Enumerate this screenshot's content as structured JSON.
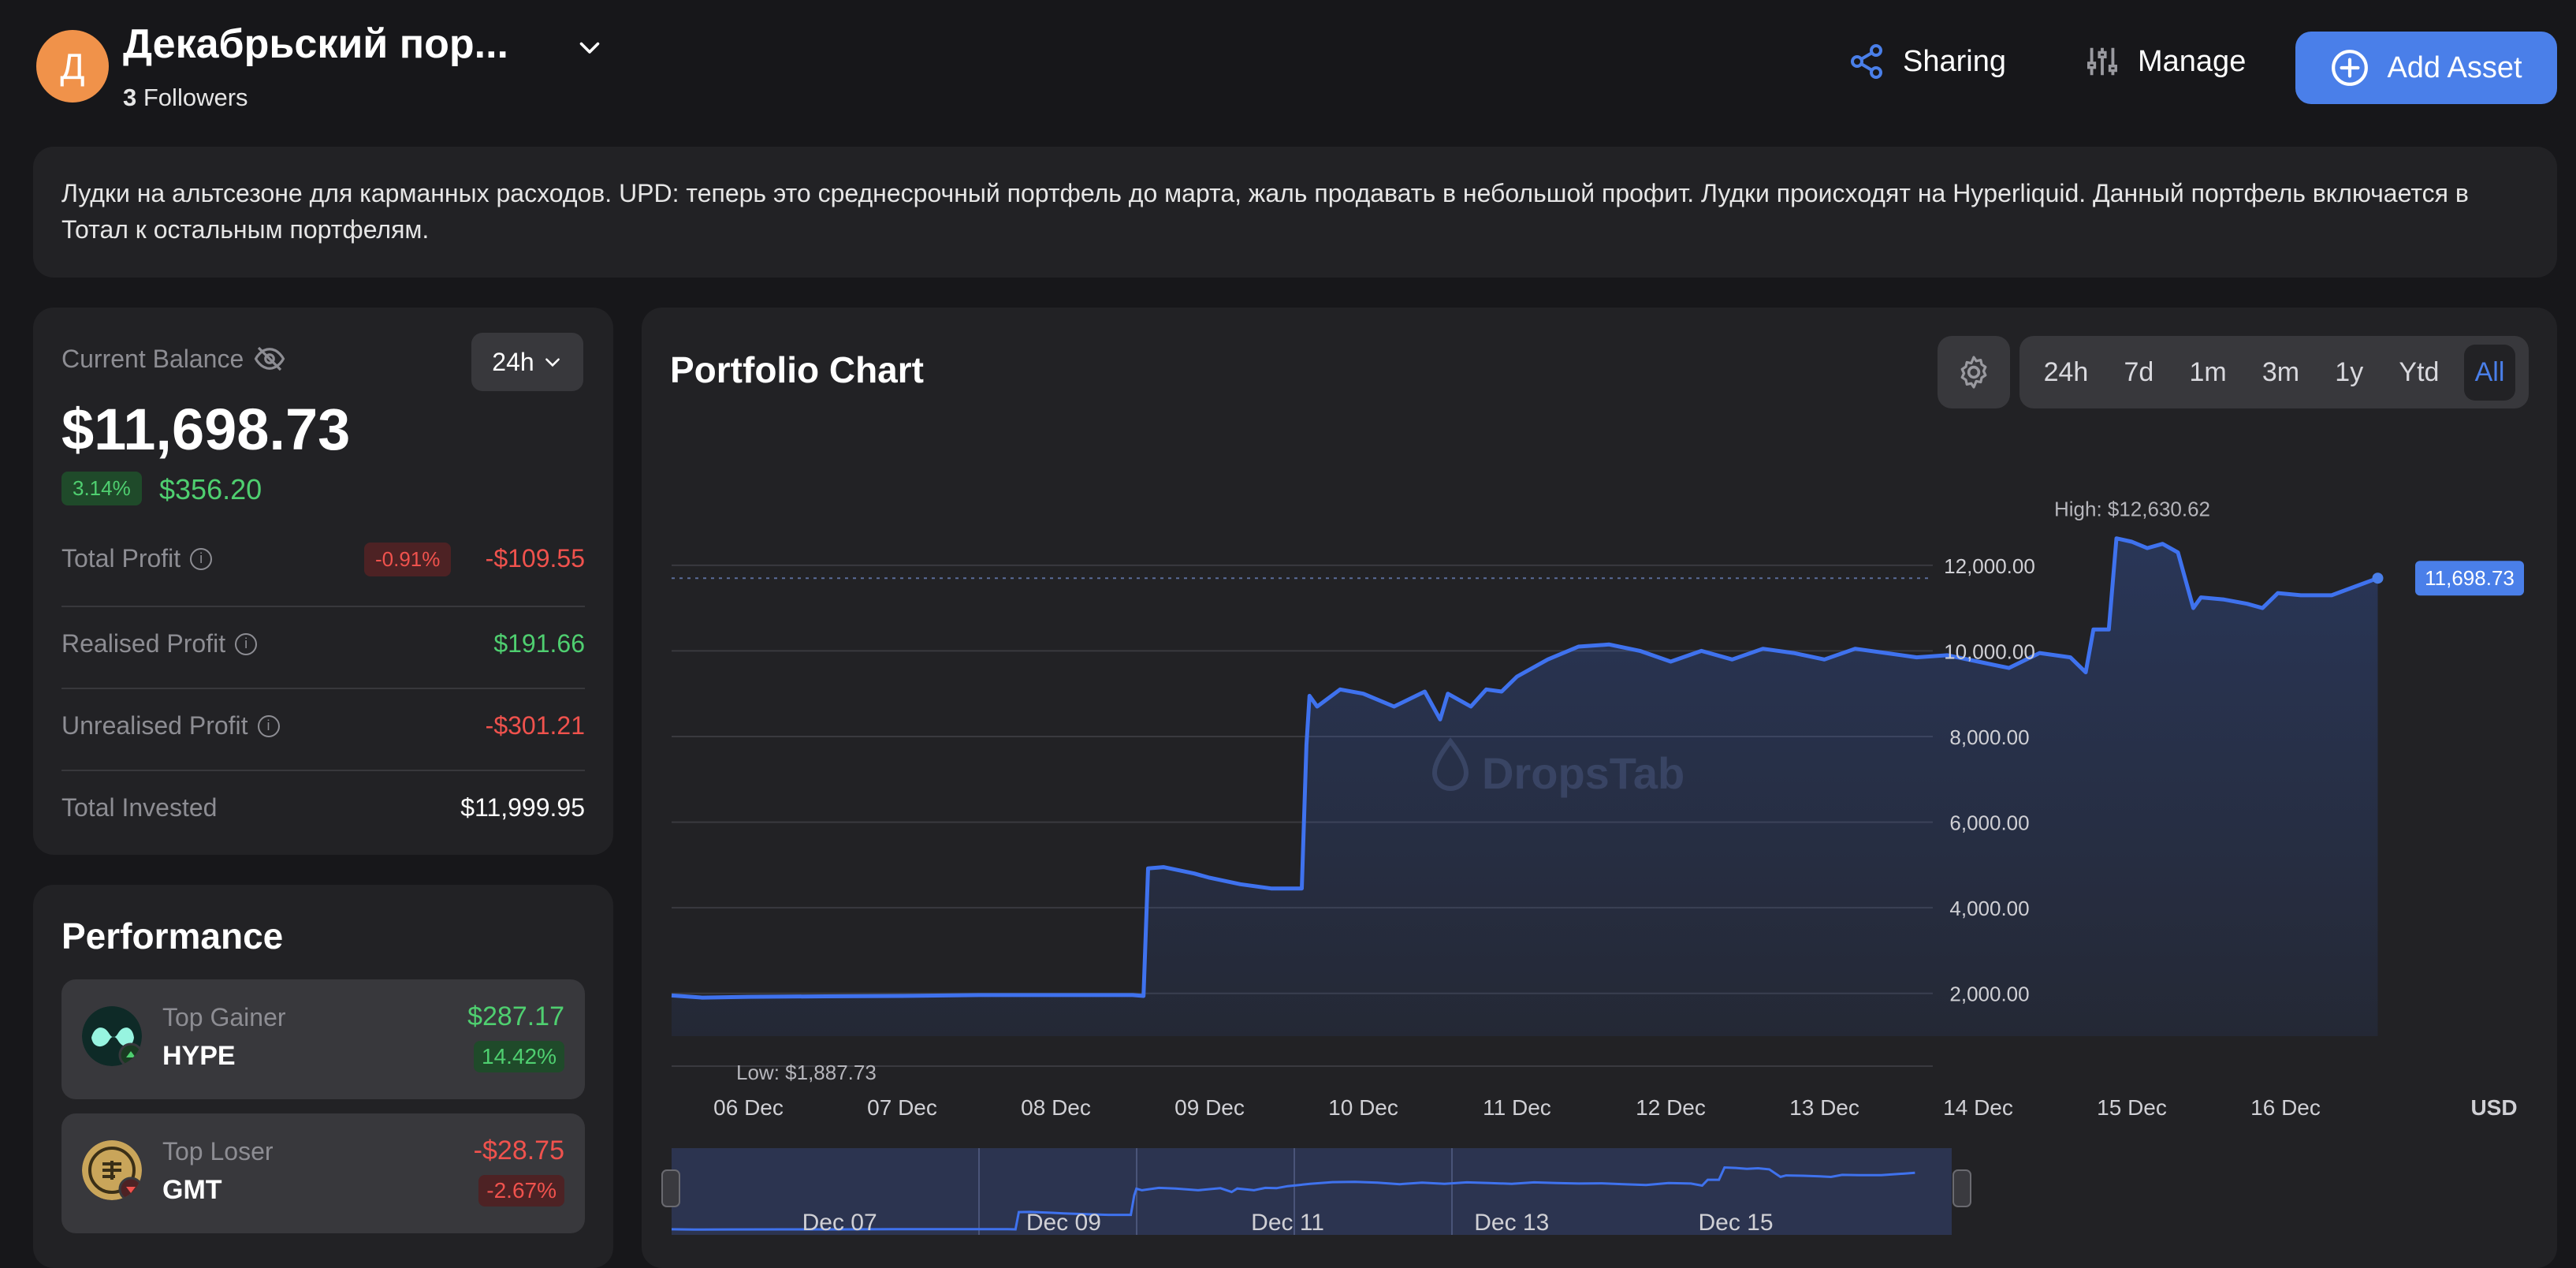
{
  "header": {
    "avatar_letter": "Д",
    "title": "Декабрьский пор...",
    "followers_count": "3",
    "followers_label": "Followers",
    "sharing_label": "Sharing",
    "manage_label": "Manage",
    "add_asset_label": "Add Asset"
  },
  "description": "Лудки на альтсезоне для карманных расходов. UPD: теперь это среднесрочный портфель до марта, жаль продавать в небольшой профит. Лудки происходят на Hyperliquid. Данный портфель включается в Тотал к остальным портфелям.",
  "balance": {
    "label": "Current Balance",
    "period": "24h",
    "value": "$11,698.73",
    "change_pct": "3.14%",
    "change_value": "$356.20",
    "rows": [
      {
        "label": "Total Profit",
        "pct": "-0.91%",
        "value": "-$109.55"
      },
      {
        "label": "Realised Profit",
        "value": "$191.66"
      },
      {
        "label": "Unrealised Profit",
        "value": "-$301.21"
      },
      {
        "label": "Total Invested",
        "value": "$11,999.95"
      }
    ]
  },
  "performance": {
    "title": "Performance",
    "gainer": {
      "label": "Top Gainer",
      "symbol": "HYPE",
      "value": "$287.17",
      "pct": "14.42%"
    },
    "loser": {
      "label": "Top Loser",
      "symbol": "GMT",
      "value": "-$28.75",
      "pct": "-2.67%"
    }
  },
  "chart": {
    "title": "Portfolio Chart",
    "ranges": [
      "24h",
      "7d",
      "1m",
      "3m",
      "1y",
      "Ytd",
      "All"
    ],
    "active_range": "All",
    "watermark": "DropsTab",
    "currency": "USD",
    "colors": {
      "line": "#3f72ee",
      "accent": "#4a7fe9"
    }
  },
  "chart_data": {
    "type": "area",
    "high_label": "High: $12,630.62",
    "low_label": "Low: $1,887.73",
    "current_label": "11,698.73",
    "y_ticks": [
      2000,
      4000,
      6000,
      8000,
      10000,
      12000
    ],
    "y_tick_labels": [
      "2,000.00",
      "4,000.00",
      "6,000.00",
      "8,000.00",
      "10,000.00",
      "12,000.00"
    ],
    "ylim": [
      1000,
      13600
    ],
    "x_tick_labels": [
      "06 Dec",
      "07 Dec",
      "08 Dec",
      "09 Dec",
      "10 Dec",
      "11 Dec",
      "12 Dec",
      "13 Dec",
      "14 Dec",
      "15 Dec",
      "16 Dec"
    ],
    "navigator_labels": [
      "Dec 07",
      "Dec 09",
      "Dec 11",
      "Dec 13",
      "Dec 15"
    ],
    "x_days": [
      5.5,
      5.7,
      6.0,
      6.5,
      7.0,
      7.5,
      8.0,
      8.5,
      8.57,
      8.6,
      8.7,
      8.9,
      9.0,
      9.2,
      9.4,
      9.6,
      9.63,
      9.65,
      9.7,
      9.85,
      10.0,
      10.2,
      10.4,
      10.5,
      10.55,
      10.7,
      10.8,
      10.9,
      11.0,
      11.2,
      11.4,
      11.6,
      11.8,
      12.0,
      12.2,
      12.4,
      12.6,
      12.8,
      13.0,
      13.2,
      13.4,
      13.6,
      13.8,
      14.0,
      14.2,
      14.4,
      14.6,
      14.7,
      14.75,
      14.85,
      14.9,
      15.0,
      15.1,
      15.2,
      15.3,
      15.4,
      15.45,
      15.6,
      15.75,
      15.85,
      15.95,
      16.1,
      16.3,
      16.45,
      16.6
    ],
    "values": [
      1950,
      1900,
      1920,
      1930,
      1940,
      1960,
      1960,
      1960,
      1940,
      4920,
      4950,
      4800,
      4700,
      4550,
      4450,
      4450,
      7800,
      8950,
      8700,
      9100,
      9000,
      8700,
      9050,
      8400,
      9000,
      8700,
      9100,
      9050,
      9400,
      9800,
      10100,
      10150,
      10000,
      9750,
      10000,
      9800,
      10050,
      9950,
      9800,
      10050,
      9950,
      9850,
      9900,
      9750,
      9600,
      9950,
      9850,
      9500,
      10500,
      10500,
      12630,
      12550,
      12400,
      12500,
      12300,
      11000,
      11250,
      11200,
      11100,
      11000,
      11350,
      11300,
      11300,
      11500,
      11698.73
    ]
  }
}
